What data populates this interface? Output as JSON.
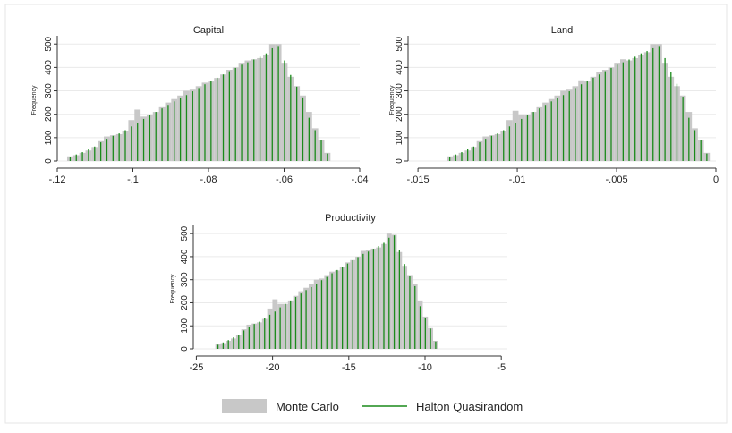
{
  "legend": {
    "monte_carlo_label": "Monte Carlo",
    "halton_label": "Halton Quasirandom",
    "colors": {
      "monte_carlo": "#c8c8c8",
      "halton": "#1a8a1a"
    }
  },
  "chart_data": [
    {
      "type": "bar",
      "title": "Capital",
      "xlabel": "",
      "ylabel": "Frequency",
      "xlim": [
        -0.12,
        -0.04
      ],
      "ylim": [
        0,
        520
      ],
      "xticks": [
        -0.12,
        -0.1,
        -0.08,
        -0.06,
        -0.04
      ],
      "xtick_labels": [
        "-.12",
        "-.1",
        "-.08",
        "-.06",
        "-.04"
      ],
      "yticks": [
        0,
        100,
        200,
        300,
        400,
        500
      ],
      "ytick_labels": [
        "0",
        "100",
        "200",
        "300",
        "400",
        "500"
      ],
      "grid": true,
      "bins": {
        "start": -0.1174,
        "width": 0.00162
      },
      "series": [
        {
          "name": "Monte Carlo",
          "values": [
            20,
            25,
            35,
            45,
            60,
            85,
            105,
            110,
            115,
            130,
            175,
            220,
            190,
            195,
            210,
            230,
            250,
            265,
            280,
            300,
            305,
            320,
            335,
            340,
            355,
            370,
            390,
            400,
            420,
            430,
            435,
            440,
            455,
            500,
            500,
            420,
            360,
            320,
            280,
            210,
            140,
            90,
            35
          ]
        },
        {
          "name": "Halton Quasirandom",
          "values": [
            18,
            28,
            38,
            50,
            62,
            80,
            95,
            108,
            118,
            132,
            148,
            162,
            180,
            195,
            210,
            225,
            240,
            255,
            268,
            282,
            298,
            312,
            328,
            342,
            356,
            370,
            384,
            398,
            412,
            422,
            434,
            446,
            460,
            482,
            492,
            430,
            368,
            318,
            272,
            185,
            132,
            88,
            32
          ]
        }
      ]
    },
    {
      "type": "bar",
      "title": "Land",
      "xlabel": "",
      "ylabel": "Frequency",
      "xlim": [
        -0.0155,
        0
      ],
      "ylim": [
        0,
        520
      ],
      "xticks": [
        -0.015,
        -0.01,
        -0.005,
        0
      ],
      "xtick_labels": [
        "-.015",
        "-.01",
        "-.005",
        "0"
      ],
      "yticks": [
        0,
        100,
        200,
        300,
        400,
        500
      ],
      "ytick_labels": [
        "0",
        "100",
        "200",
        "300",
        "400",
        "500"
      ],
      "grid": true,
      "bins": {
        "start": -0.01355,
        "width": 0.000301
      },
      "series": [
        {
          "name": "Monte Carlo",
          "values": [
            20,
            25,
            35,
            45,
            60,
            85,
            105,
            110,
            115,
            130,
            175,
            215,
            195,
            195,
            210,
            230,
            250,
            265,
            280,
            300,
            305,
            320,
            345,
            340,
            360,
            380,
            390,
            400,
            420,
            435,
            430,
            440,
            455,
            465,
            500,
            500,
            420,
            360,
            320,
            280,
            210,
            140,
            90,
            35
          ]
        },
        {
          "name": "Halton Quasirandom",
          "values": [
            18,
            28,
            38,
            50,
            62,
            80,
            95,
            108,
            118,
            132,
            148,
            162,
            180,
            195,
            210,
            225,
            240,
            255,
            268,
            282,
            298,
            312,
            328,
            342,
            356,
            370,
            384,
            398,
            412,
            422,
            434,
            446,
            460,
            470,
            482,
            492,
            440,
            380,
            330,
            275,
            185,
            132,
            88,
            32
          ]
        }
      ]
    },
    {
      "type": "bar",
      "title": "Productivity",
      "xlabel": "",
      "ylabel": "Frequency",
      "xlim": [
        -25.2,
        -4.6
      ],
      "ylim": [
        0,
        520
      ],
      "xticks": [
        -25,
        -20,
        -15,
        -10,
        -5
      ],
      "xtick_labels": [
        "-25",
        "-20",
        "-15",
        "-10",
        "-5"
      ],
      "yticks": [
        0,
        100,
        200,
        300,
        400,
        500
      ],
      "ytick_labels": [
        "0",
        "100",
        "200",
        "300",
        "400",
        "500"
      ],
      "grid": true,
      "bins": {
        "start": -23.75,
        "width": 0.34
      },
      "series": [
        {
          "name": "Monte Carlo",
          "values": [
            20,
            25,
            35,
            45,
            60,
            85,
            105,
            110,
            115,
            130,
            175,
            215,
            195,
            195,
            210,
            230,
            250,
            265,
            280,
            300,
            305,
            320,
            335,
            340,
            355,
            375,
            385,
            400,
            425,
            430,
            435,
            440,
            455,
            500,
            495,
            420,
            360,
            320,
            280,
            210,
            140,
            90,
            35
          ]
        },
        {
          "name": "Halton Quasirandom",
          "values": [
            18,
            28,
            38,
            50,
            62,
            80,
            95,
            108,
            118,
            132,
            148,
            162,
            180,
            195,
            210,
            225,
            240,
            255,
            268,
            282,
            298,
            312,
            328,
            342,
            356,
            370,
            384,
            398,
            412,
            422,
            434,
            446,
            460,
            482,
            492,
            430,
            368,
            318,
            272,
            185,
            132,
            88,
            32
          ]
        }
      ]
    }
  ]
}
